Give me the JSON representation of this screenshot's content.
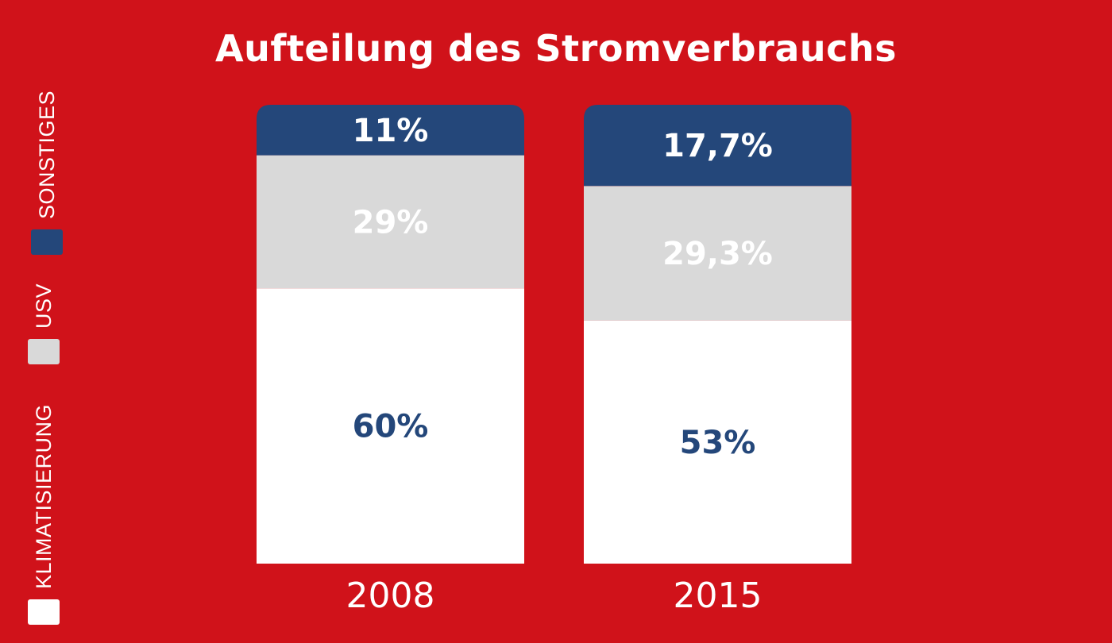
{
  "chart_data": {
    "type": "bar",
    "stacked": true,
    "title": "Aufteilung des Stromverbrauchs",
    "categories": [
      "2008",
      "2015"
    ],
    "series": [
      {
        "name": "KLIMATISIERUNG",
        "values": [
          60,
          53
        ],
        "labels": [
          "60%",
          "53%"
        ],
        "color": "#ffffff",
        "label_color": "#24477a"
      },
      {
        "name": "USV",
        "values": [
          29,
          29.3
        ],
        "labels": [
          "29%",
          "29,3%"
        ],
        "color": "#d9d9d9",
        "label_color": "#ffffff"
      },
      {
        "name": "SONSTIGES",
        "values": [
          11,
          17.7
        ],
        "labels": [
          "11%",
          "17,7%"
        ],
        "color": "#24477a",
        "label_color": "#ffffff"
      }
    ],
    "legend_position": "left, vertical",
    "grid": false
  },
  "colors": {
    "background": "#d0121a",
    "text": "#ffffff"
  }
}
